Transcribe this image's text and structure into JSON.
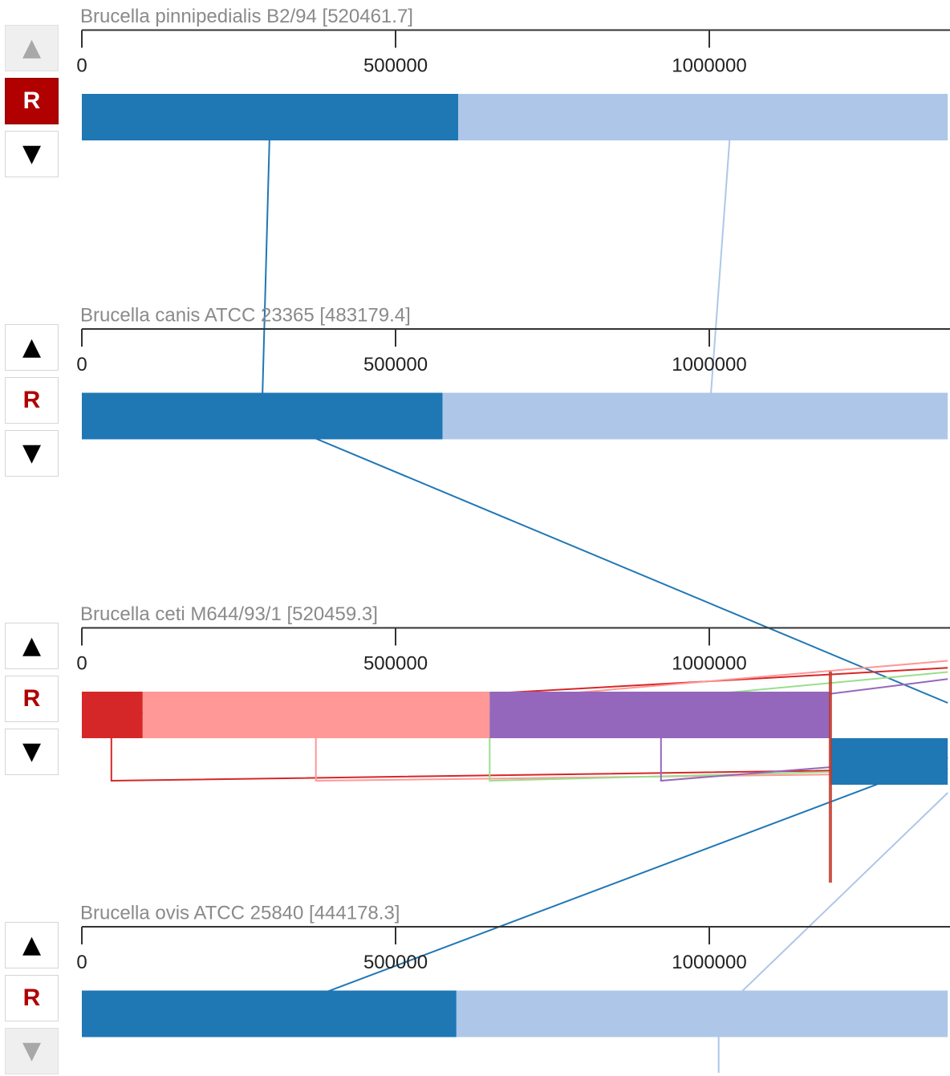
{
  "genomes": [
    {
      "title": "Brucella pinnipedialis B2/94 [520461.7]",
      "controls": {
        "up": "▲",
        "reverse": "R",
        "down": "▼",
        "up_disabled": true,
        "down_disabled": false,
        "reverse_active": true
      },
      "ticks": [
        "0",
        "500000",
        "1000000"
      ],
      "segments": [
        {
          "start": 0,
          "end": 600000,
          "color": "#1f77b4"
        },
        {
          "start": 600000,
          "end": 1380000,
          "color": "#aec7e8"
        }
      ]
    },
    {
      "title": "Brucella canis ATCC 23365 [483179.4]",
      "controls": {
        "up": "▲",
        "reverse": "R",
        "down": "▼",
        "up_disabled": false,
        "down_disabled": false,
        "reverse_active": false
      },
      "ticks": [
        "0",
        "500000",
        "1000000"
      ],
      "segments": [
        {
          "start": 0,
          "end": 575000,
          "color": "#1f77b4"
        },
        {
          "start": 575000,
          "end": 1380000,
          "color": "#aec7e8"
        }
      ]
    },
    {
      "title": "Brucella ceti M644/93/1 [520459.3]",
      "controls": {
        "up": "▲",
        "reverse": "R",
        "down": "▼",
        "up_disabled": false,
        "down_disabled": false,
        "reverse_active": false
      },
      "ticks": [
        "0",
        "500000",
        "1000000"
      ],
      "segments": [
        {
          "start": 0,
          "end": 97000,
          "color": "#d62728"
        },
        {
          "start": 97000,
          "end": 650000,
          "color": "#ff9896"
        },
        {
          "start": 650000,
          "end": 1193000,
          "color": "#9467bd"
        },
        {
          "start": 1193000,
          "end": 1380000,
          "color": "#1f77b4",
          "lane": 1
        }
      ]
    },
    {
      "title": "Brucella ovis ATCC 25840 [444178.3]",
      "controls": {
        "up": "▲",
        "reverse": "R",
        "down": "▼",
        "up_disabled": false,
        "down_disabled": true,
        "reverse_active": false
      },
      "ticks": [
        "0",
        "500000",
        "1000000"
      ],
      "segments": [
        {
          "start": 0,
          "end": 597000,
          "color": "#1f77b4"
        },
        {
          "start": 597000,
          "end": 1380000,
          "color": "#aec7e8"
        }
      ]
    }
  ],
  "links": [
    {
      "color": "#1f77b4",
      "pts": [
        [
          0,
          300000
        ],
        [
          1,
          287000
        ],
        [
          2,
          1380000,
          0.08
        ]
      ]
    },
    {
      "color": "#aec7e8",
      "pts": [
        [
          0,
          1035000
        ],
        [
          1,
          1000000
        ],
        [
          1,
          1380000,
          0.14
        ]
      ]
    },
    {
      "color": "#d62728",
      "pts": [
        [
          2,
          1380000,
          -0.17
        ],
        [
          2,
          47000
        ],
        [
          2,
          47000,
          1
        ],
        [
          2,
          1380000,
          0.55
        ]
      ]
    },
    {
      "color": "#ff9896",
      "pts": [
        [
          2,
          1380000,
          -0.22
        ],
        [
          2,
          373000
        ],
        [
          2,
          373000,
          1
        ],
        [
          2,
          1380000,
          0.58
        ]
      ]
    },
    {
      "color": "#98df8a",
      "pts": [
        [
          2,
          1380000,
          -0.14
        ],
        [
          2,
          650000
        ],
        [
          2,
          650000,
          1
        ],
        [
          2,
          1380000,
          0.55
        ]
      ]
    },
    {
      "color": "#9467bd",
      "pts": [
        [
          2,
          1380000,
          -0.09
        ],
        [
          2,
          923000
        ],
        [
          2,
          923000,
          1
        ],
        [
          2,
          1380000,
          0.47
        ]
      ]
    },
    {
      "color": "#1f77b4",
      "pts": [
        [
          2,
          1380000,
          0.47
        ],
        [
          3,
          297000
        ]
      ]
    },
    {
      "color": "#aec7e8",
      "pts": [
        [
          2,
          1380000,
          0.72
        ],
        [
          3,
          1015000
        ],
        [
          3,
          1015000,
          0.66
        ]
      ]
    }
  ],
  "cursor": {
    "genome": 2,
    "pos": 1193000,
    "color": "#c0392b"
  }
}
